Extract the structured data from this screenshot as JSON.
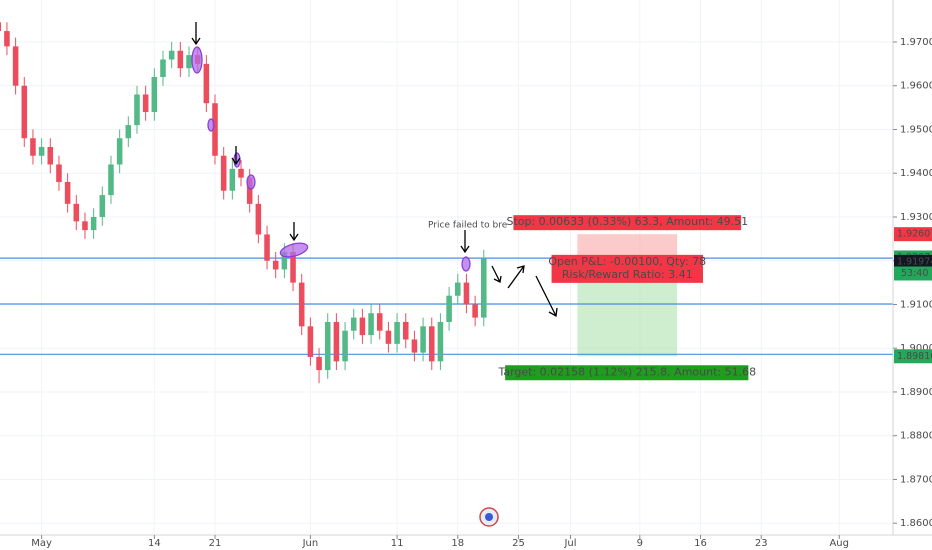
{
  "chart_data": {
    "type": "candlestick",
    "up_color": "#53b987",
    "down_color": "#eb4d5c",
    "grid": true,
    "xlim": [
      116.2,
      219.2
    ],
    "ylim": [
      1.8573,
      1.9796
    ],
    "xticks": [
      {
        "value": 121,
        "label": "May"
      },
      {
        "value": 134,
        "label": "14"
      },
      {
        "value": 141,
        "label": "21"
      },
      {
        "value": 152,
        "label": "Jun"
      },
      {
        "value": 162,
        "label": "11"
      },
      {
        "value": 169,
        "label": "18"
      },
      {
        "value": 176,
        "label": "25"
      },
      {
        "value": 182,
        "label": "Jul"
      },
      {
        "value": 190,
        "label": "9"
      },
      {
        "value": 197,
        "label": "16"
      },
      {
        "value": 204,
        "label": "23"
      },
      {
        "value": 213,
        "label": "Aug"
      }
    ],
    "yticks": [
      {
        "value": 1.86,
        "label": "1.86000"
      },
      {
        "value": 1.87,
        "label": "1.87000"
      },
      {
        "value": 1.88,
        "label": "1.88000"
      },
      {
        "value": 1.89,
        "label": "1.89000"
      },
      {
        "value": 1.9,
        "label": "1.90000"
      },
      {
        "value": 1.91,
        "label": "1.91000"
      },
      {
        "value": 1.92,
        "label": "1.92000"
      },
      {
        "value": 1.93,
        "label": "1.93000"
      },
      {
        "value": 1.94,
        "label": "1.94000"
      },
      {
        "value": 1.95,
        "label": "1.95000"
      },
      {
        "value": 1.96,
        "label": "1.96000"
      },
      {
        "value": 1.97,
        "label": "1.97000"
      }
    ],
    "candles": {
      "x": [
        116,
        117,
        118,
        119,
        120,
        121,
        122,
        123,
        124,
        125,
        126,
        127,
        128,
        129,
        130,
        131,
        132,
        133,
        134,
        135,
        136,
        137,
        138,
        139,
        140,
        141,
        142,
        143,
        144,
        145,
        146,
        147,
        148,
        149,
        150,
        151,
        152,
        153,
        154,
        155,
        156,
        157,
        158,
        159,
        160,
        161,
        162,
        163,
        164,
        165,
        166,
        167,
        168,
        169,
        170,
        171,
        172
      ],
      "open": [
        1.9745,
        1.9725,
        1.969,
        1.96,
        1.948,
        1.944,
        1.946,
        1.942,
        1.938,
        1.933,
        1.929,
        1.927,
        1.93,
        1.935,
        1.942,
        1.948,
        1.951,
        1.958,
        1.954,
        1.962,
        1.966,
        1.968,
        1.964,
        1.967,
        1.965,
        1.956,
        1.944,
        1.936,
        1.941,
        1.939,
        1.933,
        1.926,
        1.92,
        1.918,
        1.922,
        1.915,
        1.905,
        1.898,
        1.895,
        1.906,
        1.897,
        1.904,
        1.907,
        1.903,
        1.908,
        1.904,
        1.901,
        1.906,
        1.902,
        1.899,
        1.905,
        1.897,
        1.906,
        1.912,
        1.915,
        1.91,
        1.907
      ],
      "high": [
        1.9765,
        1.9745,
        1.971,
        1.962,
        1.95,
        1.948,
        1.948,
        1.944,
        1.94,
        1.935,
        1.931,
        1.932,
        1.937,
        1.944,
        1.95,
        1.953,
        1.96,
        1.96,
        1.964,
        1.968,
        1.97,
        1.97,
        1.969,
        1.969,
        1.967,
        1.958,
        1.946,
        1.943,
        1.943,
        1.941,
        1.935,
        1.928,
        1.922,
        1.924,
        1.924,
        1.917,
        1.907,
        1.9,
        1.908,
        1.908,
        1.906,
        1.909,
        1.909,
        1.91,
        1.91,
        1.906,
        1.908,
        1.908,
        1.904,
        1.907,
        1.907,
        1.908,
        1.914,
        1.917,
        1.917,
        1.912,
        1.9225
      ],
      "low": [
        1.9705,
        1.967,
        1.958,
        1.946,
        1.942,
        1.942,
        1.94,
        1.936,
        1.931,
        1.927,
        1.925,
        1.925,
        1.928,
        1.933,
        1.94,
        1.946,
        1.949,
        1.952,
        1.952,
        1.96,
        1.964,
        1.962,
        1.962,
        1.963,
        1.954,
        1.942,
        1.934,
        1.934,
        1.937,
        1.931,
        1.924,
        1.918,
        1.916,
        1.916,
        1.913,
        1.903,
        1.896,
        1.892,
        1.893,
        1.895,
        1.895,
        1.902,
        1.901,
        1.901,
        1.902,
        1.899,
        1.899,
        1.9,
        1.897,
        1.897,
        1.895,
        1.895,
        1.904,
        1.91,
        1.908,
        1.905,
        1.905
      ],
      "close": [
        1.9725,
        1.969,
        1.96,
        1.948,
        1.944,
        1.946,
        1.942,
        1.938,
        1.933,
        1.929,
        1.927,
        1.93,
        1.935,
        1.942,
        1.948,
        1.951,
        1.958,
        1.954,
        1.962,
        1.966,
        1.968,
        1.964,
        1.967,
        1.965,
        1.956,
        1.944,
        1.936,
        1.941,
        1.939,
        1.933,
        1.926,
        1.92,
        1.918,
        1.922,
        1.915,
        1.905,
        1.898,
        1.895,
        1.906,
        1.897,
        1.904,
        1.907,
        1.903,
        1.908,
        1.904,
        1.901,
        1.906,
        1.902,
        1.899,
        1.905,
        1.897,
        1.906,
        1.912,
        1.915,
        1.91,
        1.907,
        1.9205
      ]
    },
    "hlines": [
      {
        "value": 1.9206,
        "color": "#4a90e2"
      },
      {
        "value": 1.9101,
        "color": "#4a90e2"
      },
      {
        "value": 1.8986,
        "color": "#4a90e2"
      }
    ],
    "position": {
      "x": [
        182.8,
        194.3
      ],
      "entry": 1.91974,
      "stop": 1.92607,
      "target": 1.89816,
      "stop_label": "Stop: 0.00633 (0.33%) 63.3, Amount: 49.51",
      "pnl_label": "Open P&L: -0.00100, Qty: 78",
      "ratio_label": "Risk/Reward Ratio: 3.41",
      "target_label": "Target: 0.02158 (1.12%) 215.8, Amount: 51.68"
    },
    "axis_labels": [
      {
        "value": 1.92607,
        "color": "#f23645"
      },
      {
        "value": 1.92074,
        "color": "#26a65b"
      },
      {
        "value": 1.91974,
        "color": "#131722"
      },
      {
        "value": 1.89816,
        "color": "#26a65b"
      }
    ],
    "countdown": "53:40",
    "annotation": "Price failed to bre"
  }
}
